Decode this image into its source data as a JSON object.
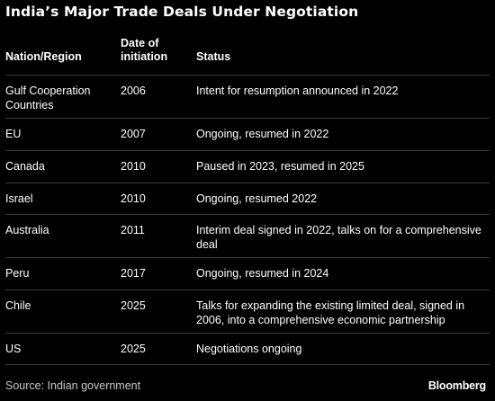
{
  "title": "India’s Major Trade Deals Under Negotiation",
  "table": {
    "headers": {
      "region": "Nation/Region",
      "date": "Date of\ninitiation",
      "status": "Status"
    },
    "rows": [
      {
        "region": "Gulf Cooperation Countries",
        "date": "2006",
        "status": "Intent for resumption announced in 2022"
      },
      {
        "region": "EU",
        "date": "2007",
        "status": "Ongoing, resumed in 2022"
      },
      {
        "region": "Canada",
        "date": "2010",
        "status": "Paused in 2023, resumed in 2025"
      },
      {
        "region": "Israel",
        "date": "2010",
        "status": "Ongoing, resumed 2022"
      },
      {
        "region": "Australia",
        "date": "2011",
        "status": "Interim deal signed in 2022, talks on for a comprehensive deal"
      },
      {
        "region": "Peru",
        "date": "2017",
        "status": "Ongoing, resumed in 2024"
      },
      {
        "region": "Chile",
        "date": "2025",
        "status": "Talks for expanding the existing limited deal, signed in 2006, into a comprehensive economic partnership"
      },
      {
        "region": "US",
        "date": "2025",
        "status": "Negotiations ongoing"
      }
    ]
  },
  "footer": {
    "source": "Source: Indian government",
    "brand": "Bloomberg"
  }
}
